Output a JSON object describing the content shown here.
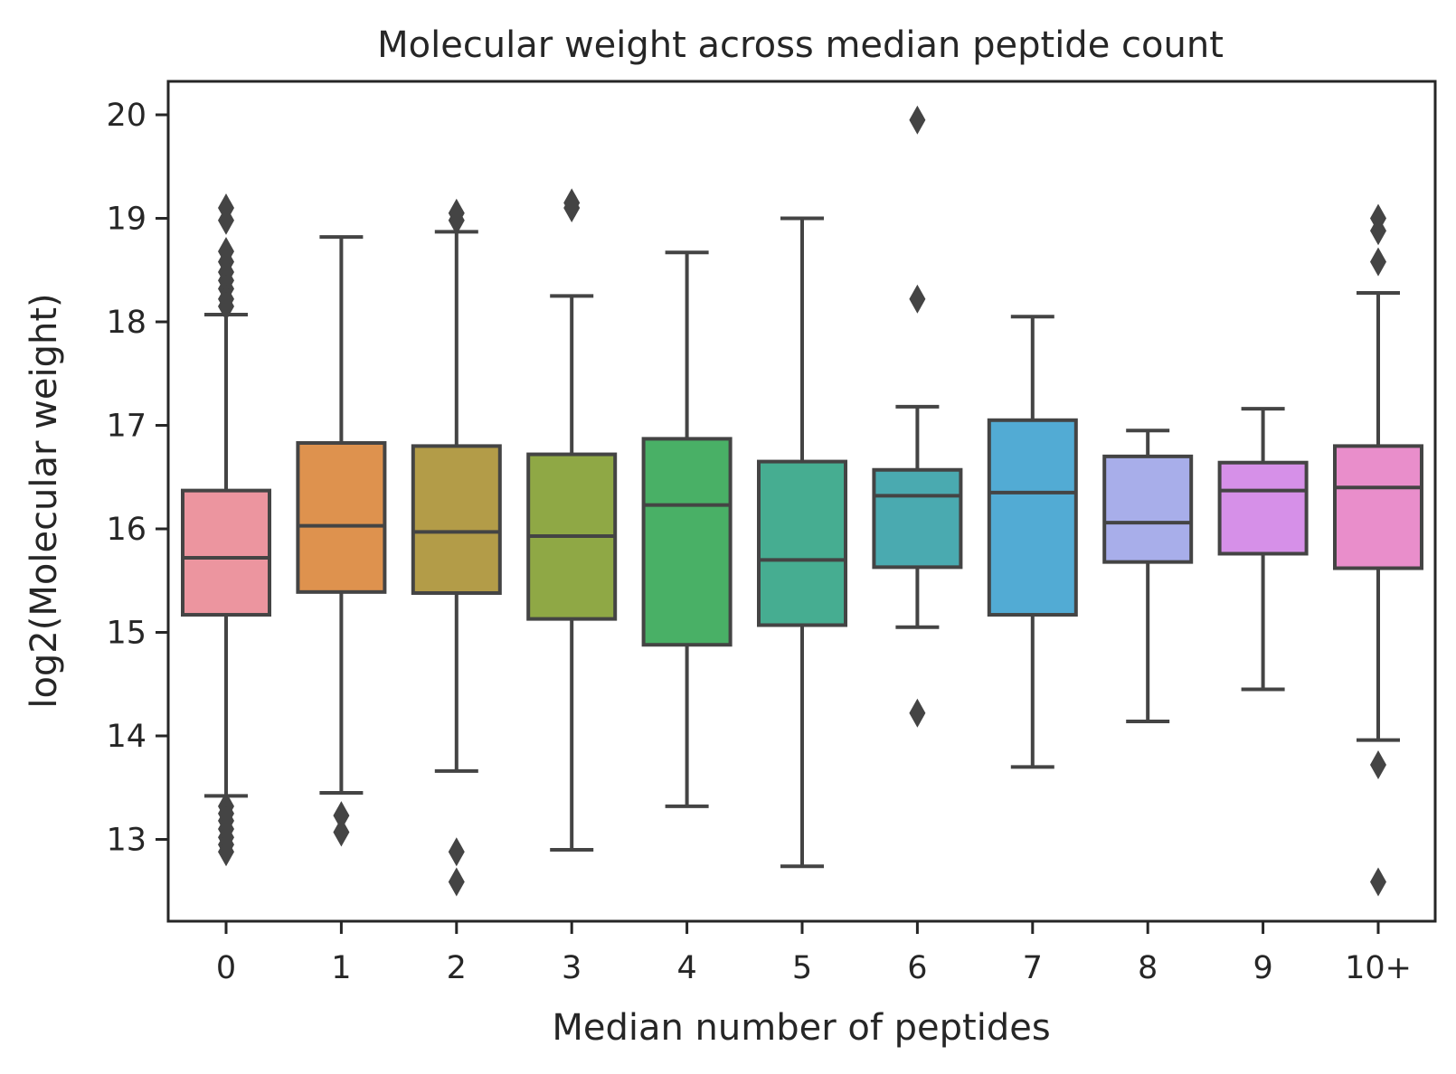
{
  "chart_data": {
    "type": "box",
    "title": "Molecular weight across median peptide count",
    "xlabel": "Median number of peptides",
    "ylabel": "log2(Molecular weight)",
    "ylim": [
      12.2,
      20.3
    ],
    "yticks": [
      13,
      14,
      15,
      16,
      17,
      18,
      19,
      20
    ],
    "categories": [
      "0",
      "1",
      "2",
      "3",
      "4",
      "5",
      "6",
      "7",
      "8",
      "9",
      "10+"
    ],
    "grid": false,
    "colors": [
      "#ec959f",
      "#de924e",
      "#b39c48",
      "#8fa845",
      "#49b066",
      "#46ad91",
      "#4aaab0",
      "#52abd4",
      "#a8aeea",
      "#d690e8",
      "#e98ecb"
    ],
    "boxes": [
      {
        "category": "0",
        "whisker_low": 13.42,
        "q1": 15.17,
        "median": 15.72,
        "q3": 16.37,
        "whisker_high": 18.07,
        "fliers": [
          19.1,
          18.98,
          18.68,
          18.58,
          18.48,
          18.4,
          18.32,
          18.22,
          18.15,
          13.32,
          13.25,
          13.18,
          13.1,
          13.02,
          12.95,
          12.88
        ]
      },
      {
        "category": "1",
        "whisker_low": 13.45,
        "q1": 15.39,
        "median": 16.03,
        "q3": 16.83,
        "whisker_high": 18.82,
        "fliers": [
          13.23,
          13.07
        ]
      },
      {
        "category": "2",
        "whisker_low": 13.66,
        "q1": 15.38,
        "median": 15.97,
        "q3": 16.8,
        "whisker_high": 18.87,
        "fliers": [
          19.05,
          18.98,
          12.88,
          12.59
        ]
      },
      {
        "category": "3",
        "whisker_low": 12.9,
        "q1": 15.13,
        "median": 15.93,
        "q3": 16.72,
        "whisker_high": 18.25,
        "fliers": [
          19.15,
          19.1
        ]
      },
      {
        "category": "4",
        "whisker_low": 13.32,
        "q1": 14.88,
        "median": 16.23,
        "q3": 16.87,
        "whisker_high": 18.67,
        "fliers": []
      },
      {
        "category": "5",
        "whisker_low": 12.74,
        "q1": 15.07,
        "median": 15.7,
        "q3": 16.65,
        "whisker_high": 19.0,
        "fliers": []
      },
      {
        "category": "6",
        "whisker_low": 15.05,
        "q1": 15.63,
        "median": 16.32,
        "q3": 16.57,
        "whisker_high": 17.18,
        "fliers": [
          19.95,
          18.22,
          14.22
        ]
      },
      {
        "category": "7",
        "whisker_low": 13.7,
        "q1": 15.17,
        "median": 16.35,
        "q3": 17.05,
        "whisker_high": 18.05,
        "fliers": []
      },
      {
        "category": "8",
        "whisker_low": 14.14,
        "q1": 15.68,
        "median": 16.06,
        "q3": 16.7,
        "whisker_high": 16.95,
        "fliers": []
      },
      {
        "category": "9",
        "whisker_low": 14.45,
        "q1": 15.76,
        "median": 16.37,
        "q3": 16.64,
        "whisker_high": 17.16,
        "fliers": []
      },
      {
        "category": "10+",
        "whisker_low": 13.96,
        "q1": 15.62,
        "median": 16.4,
        "q3": 16.8,
        "whisker_high": 18.28,
        "fliers": [
          19.0,
          18.88,
          18.58,
          13.72,
          12.59
        ]
      }
    ]
  }
}
